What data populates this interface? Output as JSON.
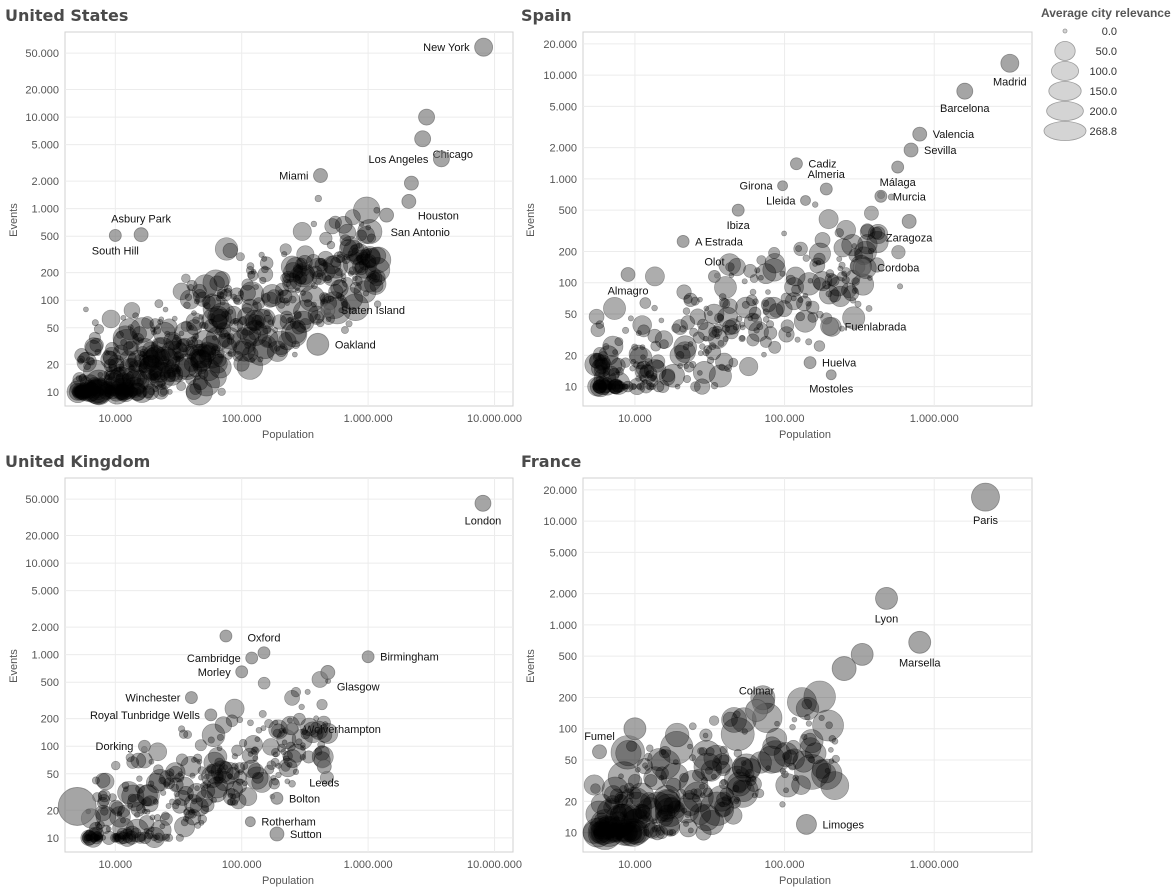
{
  "legend": {
    "title": "Average city relevance",
    "items": [
      {
        "label": "0.0",
        "value": 0
      },
      {
        "label": "50.0",
        "value": 50
      },
      {
        "label": "100.0",
        "value": 100
      },
      {
        "label": "150.0",
        "value": 150
      },
      {
        "label": "200.0",
        "value": 200
      },
      {
        "label": "268.8",
        "value": 268.8
      }
    ]
  },
  "colors": {
    "mark": "#000000",
    "highlight": "#6e6e6e",
    "grid": "#ececec",
    "frame": "#d0d0d0"
  },
  "chart_data": [
    {
      "type": "scatter",
      "title": "United States",
      "xlabel": "Population",
      "ylabel": "Events",
      "xscale": "log",
      "yscale": "log",
      "xlim": [
        4000,
        14000000
      ],
      "ylim": [
        7,
        85000
      ],
      "xticks": [
        {
          "v": 10000,
          "label": "10.000"
        },
        {
          "v": 100000,
          "label": "100.000"
        },
        {
          "v": 1000000,
          "label": "1.000.000"
        },
        {
          "v": 10000000,
          "label": "10.000.000"
        }
      ],
      "yticks": [
        {
          "v": 10,
          "label": "10"
        },
        {
          "v": 20,
          "label": "20"
        },
        {
          "v": 50,
          "label": "50"
        },
        {
          "v": 100,
          "label": "100"
        },
        {
          "v": 200,
          "label": "200"
        },
        {
          "v": 500,
          "label": "500"
        },
        {
          "v": 1000,
          "label": "1.000"
        },
        {
          "v": 2000,
          "label": "2.000"
        },
        {
          "v": 5000,
          "label": "5.000"
        },
        {
          "v": 10000,
          "label": "10.000"
        },
        {
          "v": 20000,
          "label": "20.000"
        },
        {
          "v": 50000,
          "label": "50.000"
        }
      ],
      "cloud": {
        "n": 620,
        "seed": 11,
        "xmin": 5000,
        "xmax": 1200000,
        "slope": 0.72,
        "base": 8,
        "spread": 0.45,
        "rmax": 11,
        "cap": 4000
      },
      "points": [
        {
          "name": "New York",
          "x": 8200000,
          "y": 58000,
          "r": 9,
          "label": "left"
        },
        {
          "name": "Chicago",
          "x": 2700000,
          "y": 5800,
          "r": 8,
          "label": "right-below"
        },
        {
          "name": "",
          "x": 2900000,
          "y": 10000,
          "r": 8
        },
        {
          "name": "Los Angeles",
          "x": 3800000,
          "y": 3500,
          "r": 8,
          "label": "left"
        },
        {
          "name": "",
          "x": 2200000,
          "y": 1900,
          "r": 7
        },
        {
          "name": "Miami",
          "x": 420000,
          "y": 2300,
          "r": 7,
          "label": "left"
        },
        {
          "name": "Houston",
          "x": 2100000,
          "y": 1200,
          "r": 7,
          "label": "right-below"
        },
        {
          "name": "San Antonio",
          "x": 1400000,
          "y": 850,
          "r": 7,
          "label": "right-below2"
        },
        {
          "name": "Asbury Park",
          "x": 16000,
          "y": 520,
          "r": 7,
          "label": "above"
        },
        {
          "name": "South Hill",
          "x": 10000,
          "y": 510,
          "r": 6,
          "label": "below"
        },
        {
          "name": "Staten Island",
          "x": 480000,
          "y": 78,
          "r": 7,
          "label": "right"
        },
        {
          "name": "Oakland",
          "x": 400000,
          "y": 33,
          "r": 11,
          "label": "right"
        }
      ]
    },
    {
      "type": "scatter",
      "title": "Spain",
      "xlabel": "Population",
      "ylabel": "Events",
      "xscale": "log",
      "yscale": "log",
      "xlim": [
        4500,
        4500000
      ],
      "ylim": [
        6.5,
        26000
      ],
      "xticks": [
        {
          "v": 10000,
          "label": "10.000"
        },
        {
          "v": 100000,
          "label": "100.000"
        },
        {
          "v": 1000000,
          "label": "1.000.000"
        }
      ],
      "yticks": [
        {
          "v": 10,
          "label": "10"
        },
        {
          "v": 20,
          "label": "20"
        },
        {
          "v": 50,
          "label": "50"
        },
        {
          "v": 100,
          "label": "100"
        },
        {
          "v": 200,
          "label": "200"
        },
        {
          "v": 500,
          "label": "500"
        },
        {
          "v": 1000,
          "label": "1.000"
        },
        {
          "v": 2000,
          "label": "2.000"
        },
        {
          "v": 5000,
          "label": "5.000"
        },
        {
          "v": 10000,
          "label": "10.000"
        },
        {
          "v": 20000,
          "label": "20.000"
        }
      ],
      "cloud": {
        "n": 330,
        "seed": 23,
        "xmin": 5500,
        "xmax": 600000,
        "slope": 0.78,
        "base": 9,
        "spread": 0.42,
        "rmax": 9,
        "cap": 1500
      },
      "points": [
        {
          "name": "Madrid",
          "x": 3200000,
          "y": 13000,
          "r": 9,
          "label": "below"
        },
        {
          "name": "Barcelona",
          "x": 1600000,
          "y": 7000,
          "r": 8,
          "label": "below"
        },
        {
          "name": "Valencia",
          "x": 800000,
          "y": 2700,
          "r": 7,
          "label": "right"
        },
        {
          "name": "Sevilla",
          "x": 700000,
          "y": 1900,
          "r": 7,
          "label": "right"
        },
        {
          "name": "Málaga",
          "x": 570000,
          "y": 1300,
          "r": 6,
          "label": "below"
        },
        {
          "name": "Murcia",
          "x": 440000,
          "y": 680,
          "r": 6,
          "label": "right"
        },
        {
          "name": "Zaragoza",
          "x": 680000,
          "y": 390,
          "r": 7,
          "label": "below"
        },
        {
          "name": "Cordoba",
          "x": 330000,
          "y": 140,
          "r": 9,
          "label": "right"
        },
        {
          "name": "Cadiz",
          "x": 120000,
          "y": 1400,
          "r": 6,
          "label": "right"
        },
        {
          "name": "Almeria",
          "x": 190000,
          "y": 800,
          "r": 6,
          "label": "above"
        },
        {
          "name": "Girona",
          "x": 97000,
          "y": 860,
          "r": 5,
          "label": "left"
        },
        {
          "name": "Lleida",
          "x": 138000,
          "y": 620,
          "r": 5,
          "label": "left"
        },
        {
          "name": "Ibiza",
          "x": 49000,
          "y": 500,
          "r": 6,
          "label": "below"
        },
        {
          "name": "A Estrada",
          "x": 21000,
          "y": 250,
          "r": 6,
          "label": "right"
        },
        {
          "name": "Olot",
          "x": 34000,
          "y": 115,
          "r": 6,
          "label": "above"
        },
        {
          "name": "Almagro",
          "x": 9000,
          "y": 120,
          "r": 7,
          "label": "below"
        },
        {
          "name": "Fuenlabrada",
          "x": 200000,
          "y": 38,
          "r": 9,
          "label": "right"
        },
        {
          "name": "Huelva",
          "x": 148000,
          "y": 17,
          "r": 6,
          "label": "right"
        },
        {
          "name": "Mostoles",
          "x": 205000,
          "y": 13,
          "r": 5,
          "label": "below"
        }
      ]
    },
    {
      "type": "scatter",
      "title": "United Kingdom",
      "xlabel": "Population",
      "ylabel": "Events",
      "xscale": "log",
      "yscale": "log",
      "xlim": [
        4000,
        14000000
      ],
      "ylim": [
        7,
        85000
      ],
      "xticks": [
        {
          "v": 10000,
          "label": "10.000"
        },
        {
          "v": 100000,
          "label": "100.000"
        },
        {
          "v": 1000000,
          "label": "1.000.000"
        },
        {
          "v": 10000000,
          "label": "10.000.000"
        }
      ],
      "yticks": [
        {
          "v": 10,
          "label": "10"
        },
        {
          "v": 20,
          "label": "20"
        },
        {
          "v": 50,
          "label": "50"
        },
        {
          "v": 100,
          "label": "100"
        },
        {
          "v": 200,
          "label": "200"
        },
        {
          "v": 500,
          "label": "500"
        },
        {
          "v": 1000,
          "label": "1.000"
        },
        {
          "v": 2000,
          "label": "2.000"
        },
        {
          "v": 5000,
          "label": "5.000"
        },
        {
          "v": 10000,
          "label": "10.000"
        },
        {
          "v": 20000,
          "label": "20.000"
        },
        {
          "v": 50000,
          "label": "50.000"
        }
      ],
      "cloud": {
        "n": 320,
        "seed": 37,
        "xmin": 6000,
        "xmax": 500000,
        "slope": 0.7,
        "base": 10,
        "spread": 0.42,
        "rmax": 9,
        "cap": 900
      },
      "points": [
        {
          "name": "London",
          "x": 8100000,
          "y": 45000,
          "r": 8,
          "label": "below"
        },
        {
          "name": "Birmingham",
          "x": 1000000,
          "y": 950,
          "r": 6,
          "label": "right"
        },
        {
          "name": "Glasgow",
          "x": 480000,
          "y": 640,
          "r": 7,
          "label": "right-below"
        },
        {
          "name": "Oxford",
          "x": 150000,
          "y": 1050,
          "r": 6,
          "label": "above"
        },
        {
          "name": "",
          "x": 75000,
          "y": 1600,
          "r": 6
        },
        {
          "name": "Cambridge",
          "x": 120000,
          "y": 920,
          "r": 6,
          "label": "left"
        },
        {
          "name": "Morley",
          "x": 100000,
          "y": 650,
          "r": 6,
          "label": "left"
        },
        {
          "name": "Winchester",
          "x": 40000,
          "y": 340,
          "r": 6,
          "label": "left"
        },
        {
          "name": "Royal Tunbridge Wells",
          "x": 57000,
          "y": 220,
          "r": 6,
          "label": "left"
        },
        {
          "name": "Wolverhampton",
          "x": 250000,
          "y": 155,
          "r": 6,
          "label": "right"
        },
        {
          "name": "Dorking",
          "x": 17000,
          "y": 100,
          "r": 6,
          "label": "left"
        },
        {
          "name": "Leeds",
          "x": 450000,
          "y": 60,
          "r": 7,
          "label": "below"
        },
        {
          "name": "Bolton",
          "x": 190000,
          "y": 27,
          "r": 6,
          "label": "right"
        },
        {
          "name": "Rotherham",
          "x": 117000,
          "y": 15,
          "r": 5,
          "label": "right"
        },
        {
          "name": "Sutton",
          "x": 190000,
          "y": 11,
          "r": 7,
          "label": "right"
        },
        {
          "name": "",
          "x": 5000,
          "y": 22,
          "r": 19
        }
      ]
    },
    {
      "type": "scatter",
      "title": "France",
      "xlabel": "Population",
      "ylabel": "Events",
      "xscale": "log",
      "yscale": "log",
      "xlim": [
        4500,
        4500000
      ],
      "ylim": [
        6.5,
        26000
      ],
      "xticks": [
        {
          "v": 10000,
          "label": "10.000"
        },
        {
          "v": 100000,
          "label": "100.000"
        },
        {
          "v": 1000000,
          "label": "1.000.000"
        }
      ],
      "yticks": [
        {
          "v": 10,
          "label": "10"
        },
        {
          "v": 20,
          "label": "20"
        },
        {
          "v": 50,
          "label": "50"
        },
        {
          "v": 100,
          "label": "100"
        },
        {
          "v": 200,
          "label": "200"
        },
        {
          "v": 500,
          "label": "500"
        },
        {
          "v": 1000,
          "label": "1.000"
        },
        {
          "v": 2000,
          "label": "2.000"
        },
        {
          "v": 5000,
          "label": "5.000"
        },
        {
          "v": 10000,
          "label": "10.000"
        },
        {
          "v": 20000,
          "label": "20.000"
        }
      ],
      "cloud": {
        "n": 280,
        "seed": 53,
        "xmin": 5200,
        "xmax": 220000,
        "slope": 0.65,
        "base": 10,
        "spread": 0.4,
        "rmax": 15,
        "cap": 400
      },
      "points": [
        {
          "name": "Paris",
          "x": 2200000,
          "y": 17000,
          "r": 14,
          "label": "below"
        },
        {
          "name": "Lyon",
          "x": 480000,
          "y": 1800,
          "r": 11,
          "label": "below"
        },
        {
          "name": "Marsella",
          "x": 800000,
          "y": 680,
          "r": 11,
          "label": "below"
        },
        {
          "name": "",
          "x": 330000,
          "y": 520,
          "r": 11
        },
        {
          "name": "",
          "x": 250000,
          "y": 380,
          "r": 12
        },
        {
          "name": "Colmar",
          "x": 65000,
          "y": 150,
          "r": 11,
          "label": "above"
        },
        {
          "name": "Fumel",
          "x": 5800,
          "y": 60,
          "r": 7,
          "label": "above"
        },
        {
          "name": "",
          "x": 10000,
          "y": 100,
          "r": 11
        },
        {
          "name": "Limoges",
          "x": 140000,
          "y": 12,
          "r": 10,
          "label": "right"
        }
      ]
    }
  ]
}
